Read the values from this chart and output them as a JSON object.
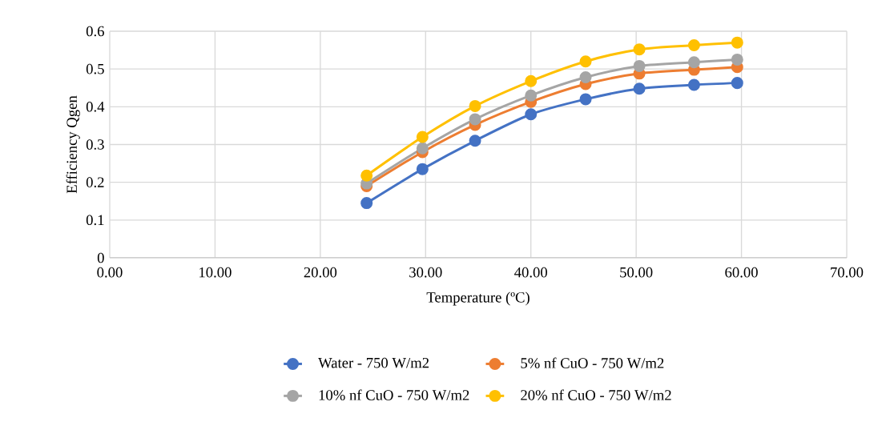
{
  "chart_data": {
    "type": "line",
    "xlabel": "Temperature (ºC)",
    "ylabel": "Efficiency Qgen",
    "x": [
      24.4,
      29.7,
      34.7,
      40.0,
      45.2,
      50.3,
      55.5,
      59.6
    ],
    "series": [
      {
        "name": "Water - 750 W/m2",
        "color": "#4472c4",
        "values": [
          0.145,
          0.235,
          0.31,
          0.38,
          0.42,
          0.448,
          0.458,
          0.463
        ]
      },
      {
        "name": "5% nf CuO - 750 W/m2",
        "color": "#ed7d31",
        "values": [
          0.19,
          0.28,
          0.352,
          0.413,
          0.46,
          0.488,
          0.498,
          0.505
        ]
      },
      {
        "name": "10% nf CuO - 750 W/m2",
        "color": "#a5a5a5",
        "values": [
          0.197,
          0.29,
          0.367,
          0.43,
          0.478,
          0.508,
          0.518,
          0.525
        ]
      },
      {
        "name": "20% nf CuO - 750 W/m2",
        "color": "#ffc000",
        "values": [
          0.218,
          0.32,
          0.402,
          0.468,
          0.52,
          0.552,
          0.563,
          0.57
        ]
      }
    ],
    "xlim": [
      0,
      70
    ],
    "xticks": [
      {
        "value": 0,
        "label": "0.00"
      },
      {
        "value": 10,
        "label": "10.00"
      },
      {
        "value": 20,
        "label": "20.00"
      },
      {
        "value": 30,
        "label": "30.00"
      },
      {
        "value": 40,
        "label": "40.00"
      },
      {
        "value": 50,
        "label": "50.00"
      },
      {
        "value": 60,
        "label": "60.00"
      },
      {
        "value": 70,
        "label": "70.00"
      }
    ],
    "ylim": [
      0,
      0.6
    ],
    "yticks": [
      0,
      0.1,
      0.2,
      0.3,
      0.4,
      0.5,
      0.6
    ],
    "grid": true,
    "legend": "bottom",
    "marker": "circle",
    "line_style": "solid"
  }
}
